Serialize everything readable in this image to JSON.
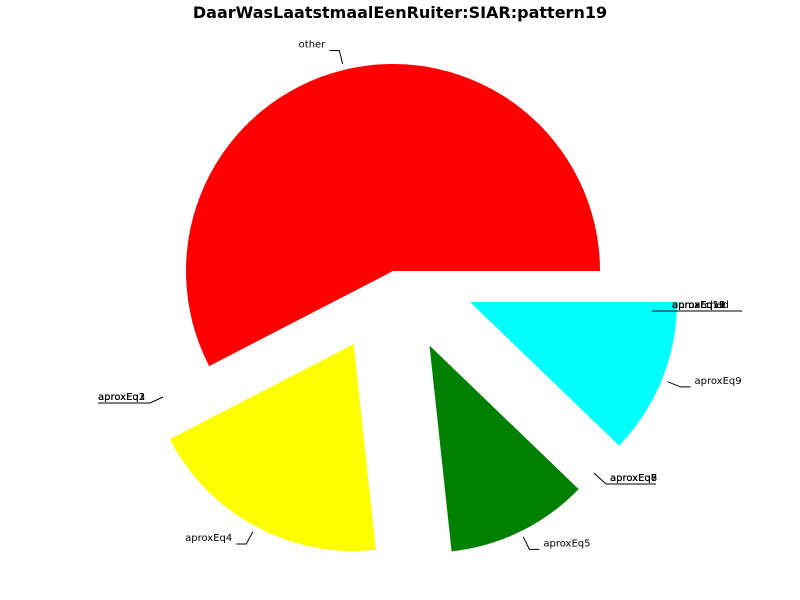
{
  "chart_data": {
    "type": "pie",
    "title": "DaarWasLaatstmaalEenRuiter:SIAR:pattern19",
    "slices": [
      {
        "label": "other",
        "value": 57.6,
        "color": "#ff0000",
        "exploded": false
      },
      {
        "label": "aproxEq4",
        "value": 19.1,
        "color": "#ffff00",
        "exploded": true
      },
      {
        "label": "aproxEq5",
        "value": 11.1,
        "color": "#008000",
        "exploded": true
      },
      {
        "label": "aproxEq9",
        "value": 12.2,
        "color": "#00ffff",
        "exploded": true
      }
    ],
    "zero_labels": {
      "left_group": [
        "aproxEq1",
        "aproxEq2",
        "aproxEq3"
      ],
      "bottom_right_group": [
        "aproxEq6",
        "aproxEq7",
        "aproxEq8"
      ],
      "top_right_group": [
        "unmatched",
        "aproxEq10",
        "aproxEq11",
        "aproxEq12",
        "aproxEq13"
      ]
    }
  }
}
